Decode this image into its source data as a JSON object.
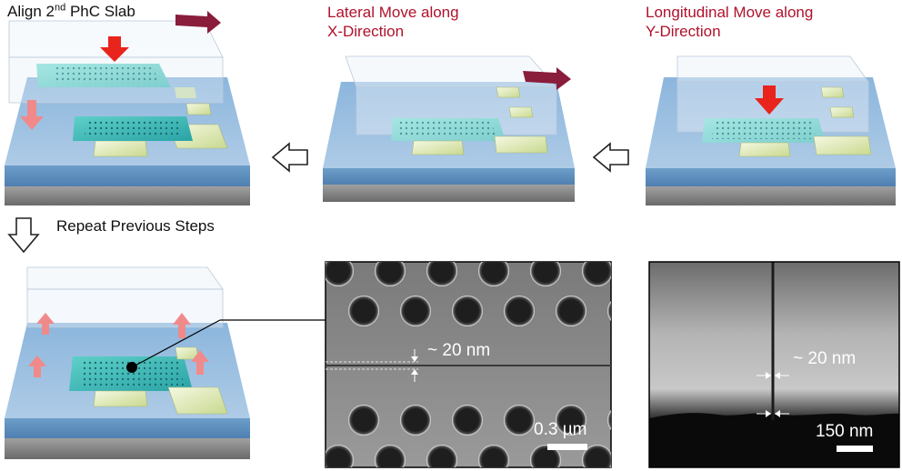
{
  "steps": {
    "align": {
      "prefix": "Align 2",
      "sup": "nd",
      "suffix": " PhC Slab"
    },
    "lateral": {
      "line1": "Lateral Move along",
      "line2": "X-Direction"
    },
    "longitudinal": {
      "line1": "Longitudinal Move along",
      "line2": "Y-Direction"
    },
    "repeat": "Repeat Previous Steps"
  },
  "sem_top": {
    "gap_label": "~ 20 nm",
    "scale_label": "0.3 µm"
  },
  "sem_cross": {
    "gap_label": "~ 20 nm",
    "scale_label": "150 nm"
  },
  "colors": {
    "text_red": "#b0112b",
    "arrow_red": "#e8241c",
    "arrow_maroon": "#8a1c3c",
    "arrow_pink": "#f08a8a",
    "slab_teal": "#3fbcb8",
    "pad_green": "#d7e3a8",
    "substrate_blue": "#6d9ec9",
    "substrate_gray": "#8c8c8c"
  },
  "icons": [
    "arrow-left-icon",
    "arrow-down-icon",
    "red-move-arrow-icon",
    "maroon-move-arrow-icon"
  ]
}
